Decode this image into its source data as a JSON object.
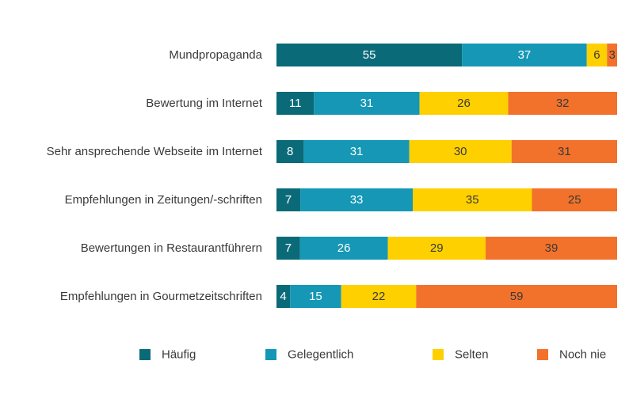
{
  "chart_data": {
    "type": "bar",
    "orientation": "horizontal",
    "stacked": true,
    "percent_stacked": true,
    "categories": [
      "Mundpropaganda",
      "Bewertung im Internet",
      "Sehr ansprechende Webseite im Internet",
      "Empfehlungen in Zeitungen/-schriften",
      "Bewertungen in Restaurantführern",
      "Empfehlungen in Gourmetzeitschriften"
    ],
    "series": [
      {
        "name": "Häufig",
        "color": "#0b6a78",
        "label_color": "#ffffff",
        "values": [
          55,
          11,
          8,
          7,
          7,
          4
        ]
      },
      {
        "name": "Gelegentlich",
        "color": "#1597b5",
        "label_color": "#ffffff",
        "values": [
          37,
          31,
          31,
          33,
          26,
          15
        ]
      },
      {
        "name": "Selten",
        "color": "#ffd000",
        "label_color": "#3a3a3a",
        "values": [
          6,
          26,
          30,
          35,
          29,
          22
        ]
      },
      {
        "name": "Noch nie",
        "color": "#f2722c",
        "label_color": "#3a3a3a",
        "values": [
          3,
          32,
          31,
          25,
          39,
          59
        ]
      }
    ],
    "legend_position": "bottom",
    "grid": false,
    "title": "",
    "xlabel": "",
    "ylabel": ""
  }
}
